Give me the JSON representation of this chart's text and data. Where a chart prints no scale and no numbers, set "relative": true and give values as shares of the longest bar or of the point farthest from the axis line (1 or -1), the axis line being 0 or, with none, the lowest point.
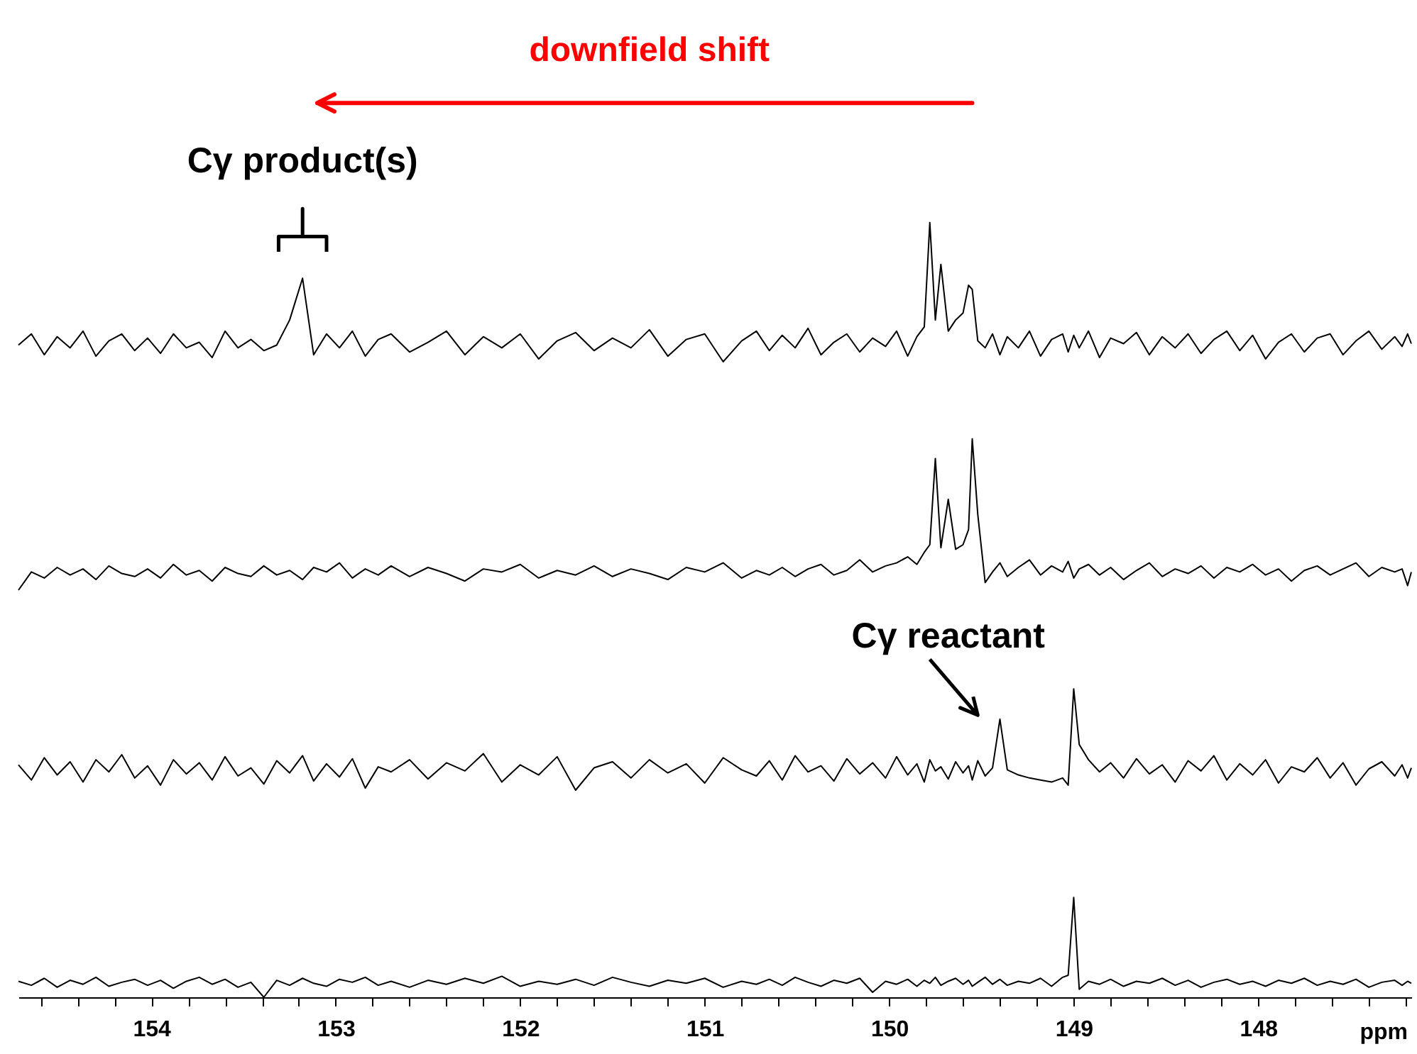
{
  "chart_data": [
    {
      "type": "line",
      "relative": true,
      "color": "#000000",
      "tick_labels": false,
      "xlim": [
        154.72,
        147.17
      ],
      "xticks": [
        154,
        153,
        152,
        151,
        150,
        149,
        148
      ],
      "x": [
        154.72,
        154.65,
        154.58,
        154.51,
        154.44,
        154.37,
        154.3,
        154.23,
        154.16,
        154.09,
        154.02,
        153.95,
        153.88,
        153.81,
        153.74,
        153.67,
        153.6,
        153.53,
        153.46,
        153.39,
        153.32,
        153.25,
        153.18,
        153.12,
        153.05,
        152.98,
        152.91,
        152.84,
        152.77,
        152.7,
        152.6,
        152.5,
        152.4,
        152.3,
        152.2,
        152.1,
        152.0,
        151.9,
        151.8,
        151.7,
        151.6,
        151.5,
        151.4,
        151.3,
        151.2,
        151.1,
        151.0,
        150.9,
        150.8,
        150.72,
        150.65,
        150.58,
        150.51,
        150.44,
        150.37,
        150.3,
        150.23,
        150.16,
        150.09,
        150.02,
        149.96,
        149.9,
        149.85,
        149.81,
        149.78,
        149.75,
        149.72,
        149.68,
        149.64,
        149.6,
        149.57,
        149.55,
        149.52,
        149.48,
        149.44,
        149.4,
        149.36,
        149.3,
        149.24,
        149.18,
        149.12,
        149.06,
        149.03,
        149.0,
        148.97,
        148.92,
        148.86,
        148.8,
        148.73,
        148.66,
        148.59,
        148.52,
        148.45,
        148.38,
        148.31,
        148.24,
        148.17,
        148.1,
        148.03,
        147.96,
        147.89,
        147.82,
        147.75,
        147.68,
        147.61,
        147.54,
        147.47,
        147.4,
        147.33,
        147.26,
        147.22,
        147.19,
        147.17
      ],
      "values": [
        0.12,
        0.2,
        0.05,
        0.18,
        0.1,
        0.22,
        0.04,
        0.15,
        0.2,
        0.08,
        0.17,
        0.06,
        0.2,
        0.1,
        0.14,
        0.03,
        0.22,
        0.1,
        0.16,
        0.08,
        0.12,
        0.3,
        0.6,
        0.05,
        0.2,
        0.1,
        0.22,
        0.04,
        0.16,
        0.2,
        0.07,
        0.14,
        0.22,
        0.05,
        0.18,
        0.1,
        0.2,
        0.02,
        0.15,
        0.21,
        0.08,
        0.17,
        0.1,
        0.23,
        0.04,
        0.16,
        0.2,
        0.0,
        0.15,
        0.22,
        0.08,
        0.19,
        0.1,
        0.24,
        0.05,
        0.14,
        0.2,
        0.07,
        0.17,
        0.11,
        0.22,
        0.04,
        0.18,
        0.25,
        1.0,
        0.3,
        0.7,
        0.22,
        0.3,
        0.35,
        0.55,
        0.52,
        0.15,
        0.1,
        0.2,
        0.05,
        0.18,
        0.1,
        0.22,
        0.04,
        0.16,
        0.2,
        0.07,
        0.19,
        0.1,
        0.22,
        0.03,
        0.17,
        0.13,
        0.21,
        0.05,
        0.18,
        0.1,
        0.2,
        0.06,
        0.16,
        0.22,
        0.08,
        0.19,
        0.02,
        0.14,
        0.2,
        0.07,
        0.17,
        0.2,
        0.05,
        0.15,
        0.22,
        0.09,
        0.18,
        0.11,
        0.2,
        0.13
      ],
      "annotations": [
        "downfield shift",
        {
          "text": "Cγ product(s)",
          "x": 153.18,
          "y": 0.6
        }
      ]
    },
    {
      "type": "line",
      "relative": true,
      "color": "#000000",
      "tick_labels": false,
      "xlim": [
        154.72,
        147.17
      ],
      "xticks": [
        154,
        153,
        152,
        151,
        150,
        149,
        148
      ],
      "x": [
        154.72,
        154.65,
        154.58,
        154.51,
        154.44,
        154.37,
        154.3,
        154.23,
        154.16,
        154.09,
        154.02,
        153.95,
        153.88,
        153.81,
        153.74,
        153.67,
        153.6,
        153.53,
        153.46,
        153.39,
        153.32,
        153.25,
        153.18,
        153.12,
        153.05,
        152.98,
        152.91,
        152.84,
        152.77,
        152.7,
        152.6,
        152.5,
        152.4,
        152.3,
        152.2,
        152.1,
        152.0,
        151.9,
        151.8,
        151.7,
        151.6,
        151.5,
        151.4,
        151.3,
        151.2,
        151.1,
        151.0,
        150.9,
        150.8,
        150.72,
        150.65,
        150.58,
        150.51,
        150.44,
        150.37,
        150.3,
        150.23,
        150.16,
        150.09,
        150.02,
        149.96,
        149.9,
        149.85,
        149.81,
        149.78,
        149.75,
        149.72,
        149.68,
        149.64,
        149.6,
        149.57,
        149.55,
        149.52,
        149.48,
        149.44,
        149.4,
        149.36,
        149.3,
        149.24,
        149.18,
        149.12,
        149.06,
        149.03,
        149.0,
        148.97,
        148.92,
        148.86,
        148.8,
        148.73,
        148.66,
        148.59,
        148.52,
        148.45,
        148.38,
        148.31,
        148.24,
        148.17,
        148.1,
        148.03,
        147.96,
        147.89,
        147.82,
        147.75,
        147.68,
        147.61,
        147.54,
        147.47,
        147.4,
        147.33,
        147.26,
        147.22,
        147.19,
        147.17
      ],
      "values": [
        0.0,
        0.12,
        0.08,
        0.15,
        0.1,
        0.14,
        0.07,
        0.16,
        0.11,
        0.09,
        0.14,
        0.08,
        0.17,
        0.1,
        0.13,
        0.06,
        0.15,
        0.11,
        0.09,
        0.16,
        0.1,
        0.13,
        0.07,
        0.15,
        0.12,
        0.18,
        0.08,
        0.14,
        0.1,
        0.16,
        0.09,
        0.15,
        0.11,
        0.06,
        0.14,
        0.12,
        0.17,
        0.08,
        0.13,
        0.1,
        0.16,
        0.09,
        0.14,
        0.11,
        0.07,
        0.15,
        0.12,
        0.18,
        0.08,
        0.13,
        0.1,
        0.15,
        0.09,
        0.14,
        0.17,
        0.1,
        0.13,
        0.2,
        0.12,
        0.16,
        0.18,
        0.22,
        0.17,
        0.25,
        0.3,
        0.87,
        0.28,
        0.6,
        0.27,
        0.3,
        0.4,
        1.0,
        0.5,
        0.05,
        0.12,
        0.18,
        0.09,
        0.15,
        0.2,
        0.1,
        0.16,
        0.12,
        0.19,
        0.08,
        0.14,
        0.17,
        0.1,
        0.15,
        0.07,
        0.13,
        0.18,
        0.09,
        0.14,
        0.11,
        0.16,
        0.08,
        0.15,
        0.12,
        0.17,
        0.1,
        0.14,
        0.06,
        0.13,
        0.16,
        0.1,
        0.14,
        0.18,
        0.09,
        0.15,
        0.12,
        0.14,
        0.03,
        0.12
      ]
    },
    {
      "type": "line",
      "relative": true,
      "color": "#000000",
      "tick_labels": false,
      "xlim": [
        154.72,
        147.17
      ],
      "xticks": [
        154,
        153,
        152,
        151,
        150,
        149,
        148
      ],
      "x": [
        154.72,
        154.65,
        154.58,
        154.51,
        154.44,
        154.37,
        154.3,
        154.23,
        154.16,
        154.09,
        154.02,
        153.95,
        153.88,
        153.81,
        153.74,
        153.67,
        153.6,
        153.53,
        153.46,
        153.39,
        153.32,
        153.25,
        153.18,
        153.12,
        153.05,
        152.98,
        152.91,
        152.84,
        152.77,
        152.7,
        152.6,
        152.5,
        152.4,
        152.3,
        152.2,
        152.1,
        152.0,
        151.9,
        151.8,
        151.7,
        151.6,
        151.5,
        151.4,
        151.3,
        151.2,
        151.1,
        151.0,
        150.9,
        150.8,
        150.72,
        150.65,
        150.58,
        150.51,
        150.44,
        150.37,
        150.3,
        150.23,
        150.16,
        150.09,
        150.02,
        149.96,
        149.9,
        149.85,
        149.81,
        149.78,
        149.75,
        149.72,
        149.68,
        149.64,
        149.6,
        149.57,
        149.55,
        149.52,
        149.48,
        149.44,
        149.4,
        149.36,
        149.3,
        149.24,
        149.18,
        149.12,
        149.06,
        149.03,
        149.0,
        148.97,
        148.92,
        148.86,
        148.8,
        148.73,
        148.66,
        148.59,
        148.52,
        148.45,
        148.38,
        148.31,
        148.24,
        148.17,
        148.1,
        148.03,
        147.96,
        147.89,
        147.82,
        147.75,
        147.68,
        147.61,
        147.54,
        147.47,
        147.4,
        147.33,
        147.26,
        147.22,
        147.19,
        147.17
      ],
      "values": [
        0.25,
        0.1,
        0.32,
        0.15,
        0.28,
        0.08,
        0.3,
        0.18,
        0.35,
        0.12,
        0.24,
        0.05,
        0.3,
        0.16,
        0.27,
        0.1,
        0.33,
        0.14,
        0.22,
        0.06,
        0.29,
        0.17,
        0.34,
        0.09,
        0.26,
        0.13,
        0.31,
        0.02,
        0.23,
        0.18,
        0.3,
        0.11,
        0.27,
        0.19,
        0.36,
        0.08,
        0.25,
        0.15,
        0.33,
        0.0,
        0.22,
        0.28,
        0.12,
        0.3,
        0.17,
        0.26,
        0.07,
        0.32,
        0.2,
        0.14,
        0.29,
        0.1,
        0.34,
        0.18,
        0.24,
        0.09,
        0.31,
        0.16,
        0.27,
        0.12,
        0.33,
        0.15,
        0.26,
        0.08,
        0.3,
        0.19,
        0.23,
        0.11,
        0.28,
        0.17,
        0.24,
        0.1,
        0.29,
        0.14,
        0.22,
        0.7,
        0.2,
        0.15,
        0.12,
        0.1,
        0.08,
        0.12,
        0.05,
        1.0,
        0.45,
        0.3,
        0.18,
        0.27,
        0.12,
        0.31,
        0.16,
        0.25,
        0.08,
        0.29,
        0.19,
        0.34,
        0.1,
        0.26,
        0.15,
        0.3,
        0.07,
        0.23,
        0.18,
        0.32,
        0.12,
        0.27,
        0.05,
        0.21,
        0.28,
        0.14,
        0.25,
        0.12,
        0.22
      ],
      "annotations": [
        {
          "text": "Cγ reactant",
          "x": 149.4,
          "y": 0.7
        }
      ]
    },
    {
      "type": "line",
      "relative": true,
      "color": "#000000",
      "tick_labels": "x",
      "xlim": [
        154.72,
        147.17
      ],
      "xlabel": "ppm",
      "xticks": [
        {
          "value": 154.6,
          "label": null
        },
        {
          "value": 154.4,
          "label": null
        },
        {
          "value": 154.2,
          "label": null
        },
        154,
        {
          "value": 153.8,
          "label": null
        },
        {
          "value": 153.6,
          "label": null
        },
        {
          "value": 153.4,
          "label": null
        },
        {
          "value": 153.2,
          "label": null
        },
        153,
        {
          "value": 152.8,
          "label": null
        },
        {
          "value": 152.6,
          "label": null
        },
        {
          "value": 152.4,
          "label": null
        },
        {
          "value": 152.2,
          "label": null
        },
        152,
        {
          "value": 151.8,
          "label": null
        },
        {
          "value": 151.6,
          "label": null
        },
        {
          "value": 151.4,
          "label": null
        },
        {
          "value": 151.2,
          "label": null
        },
        151,
        {
          "value": 150.8,
          "label": null
        },
        {
          "value": 150.6,
          "label": null
        },
        {
          "value": 150.4,
          "label": null
        },
        {
          "value": 150.2,
          "label": null
        },
        150,
        {
          "value": 149.8,
          "label": null
        },
        {
          "value": 149.6,
          "label": null
        },
        {
          "value": 149.4,
          "label": null
        },
        {
          "value": 149.2,
          "label": null
        },
        149,
        {
          "value": 148.8,
          "label": null
        },
        {
          "value": 148.6,
          "label": null
        },
        {
          "value": 148.4,
          "label": null
        },
        {
          "value": 148.2,
          "label": null
        },
        148,
        {
          "value": 147.8,
          "label": null
        },
        {
          "value": 147.6,
          "label": null
        },
        {
          "value": 147.4,
          "label": null
        },
        {
          "value": 147.2,
          "label": null
        }
      ],
      "x": [
        154.72,
        154.65,
        154.58,
        154.51,
        154.44,
        154.37,
        154.3,
        154.23,
        154.16,
        154.09,
        154.02,
        153.95,
        153.88,
        153.81,
        153.74,
        153.67,
        153.6,
        153.53,
        153.46,
        153.39,
        153.32,
        153.25,
        153.18,
        153.12,
        153.05,
        152.98,
        152.91,
        152.84,
        152.77,
        152.7,
        152.6,
        152.5,
        152.4,
        152.3,
        152.2,
        152.1,
        152.0,
        151.9,
        151.8,
        151.7,
        151.6,
        151.5,
        151.4,
        151.3,
        151.2,
        151.1,
        151.0,
        150.9,
        150.8,
        150.72,
        150.65,
        150.58,
        150.51,
        150.44,
        150.37,
        150.3,
        150.23,
        150.16,
        150.09,
        150.02,
        149.96,
        149.9,
        149.85,
        149.81,
        149.78,
        149.75,
        149.72,
        149.68,
        149.64,
        149.6,
        149.57,
        149.55,
        149.52,
        149.48,
        149.44,
        149.4,
        149.36,
        149.3,
        149.24,
        149.18,
        149.12,
        149.06,
        149.03,
        149.0,
        148.97,
        148.92,
        148.86,
        148.8,
        148.73,
        148.66,
        148.59,
        148.52,
        148.45,
        148.38,
        148.31,
        148.24,
        148.17,
        148.1,
        148.03,
        147.96,
        147.89,
        147.82,
        147.75,
        147.68,
        147.61,
        147.54,
        147.47,
        147.4,
        147.33,
        147.26,
        147.22,
        147.19,
        147.17
      ],
      "values": [
        0.16,
        0.12,
        0.19,
        0.1,
        0.17,
        0.13,
        0.2,
        0.11,
        0.15,
        0.18,
        0.12,
        0.17,
        0.09,
        0.16,
        0.2,
        0.13,
        0.18,
        0.1,
        0.15,
        0.0,
        0.17,
        0.12,
        0.19,
        0.14,
        0.11,
        0.18,
        0.15,
        0.2,
        0.12,
        0.16,
        0.1,
        0.17,
        0.13,
        0.19,
        0.14,
        0.21,
        0.11,
        0.16,
        0.13,
        0.18,
        0.12,
        0.2,
        0.15,
        0.11,
        0.17,
        0.14,
        0.19,
        0.1,
        0.16,
        0.13,
        0.18,
        0.12,
        0.2,
        0.15,
        0.11,
        0.17,
        0.14,
        0.19,
        0.05,
        0.16,
        0.13,
        0.18,
        0.11,
        0.17,
        0.14,
        0.2,
        0.12,
        0.16,
        0.19,
        0.13,
        0.17,
        0.11,
        0.15,
        0.2,
        0.13,
        0.18,
        0.12,
        0.16,
        0.14,
        0.19,
        0.11,
        0.2,
        0.22,
        1.0,
        0.08,
        0.16,
        0.13,
        0.18,
        0.11,
        0.16,
        0.14,
        0.19,
        0.12,
        0.17,
        0.1,
        0.15,
        0.18,
        0.13,
        0.16,
        0.11,
        0.17,
        0.14,
        0.19,
        0.12,
        0.16,
        0.13,
        0.18,
        0.1,
        0.15,
        0.17,
        0.12,
        0.16,
        0.14
      ]
    }
  ]
}
